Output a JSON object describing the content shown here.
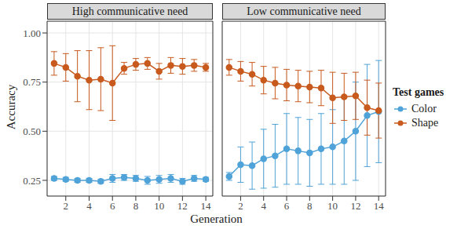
{
  "x_label": "Generation",
  "y_label": "Accuracy",
  "legend_title": "Test games",
  "legend": "right",
  "chart_data": [
    {
      "type": "line",
      "title": "High communicative need",
      "x": [
        1,
        2,
        3,
        4,
        5,
        6,
        7,
        8,
        9,
        10,
        11,
        12,
        13,
        14
      ],
      "xlim": [
        0.4,
        14.6
      ],
      "xticks": [
        2,
        4,
        6,
        8,
        10,
        12,
        14
      ],
      "ylim": [
        0.17,
        1.06
      ],
      "yticks": [
        {
          "value": 0.25,
          "label": "0.25"
        },
        {
          "value": 0.5,
          "label": "0.50"
        },
        {
          "value": 0.75,
          "label": "0.75"
        },
        {
          "value": 1,
          "label": "1.00"
        }
      ],
      "grid": true,
      "tick_labels": true,
      "marker": "circle",
      "series": [
        {
          "name": "Color",
          "color": "#4fa3d8",
          "values": [
            0.26,
            0.255,
            0.25,
            0.25,
            0.245,
            0.26,
            0.265,
            0.26,
            0.25,
            0.255,
            0.26,
            0.245,
            0.26,
            0.255
          ],
          "errors": [
            0.01,
            0.01,
            0.01,
            0.01,
            0.01,
            0.02,
            0.015,
            0.015,
            0.02,
            0.02,
            0.02,
            0.015,
            0.015,
            0.01
          ]
        },
        {
          "name": "Shape",
          "color": "#c85a1e",
          "values": [
            0.845,
            0.825,
            0.78,
            0.76,
            0.765,
            0.745,
            0.82,
            0.84,
            0.845,
            0.805,
            0.835,
            0.83,
            0.835,
            0.825
          ],
          "errors": [
            0.06,
            0.07,
            0.13,
            0.15,
            0.16,
            0.19,
            0.03,
            0.03,
            0.03,
            0.04,
            0.04,
            0.04,
            0.03,
            0.02
          ]
        }
      ]
    },
    {
      "type": "line",
      "title": "Low communicative need",
      "x": [
        1,
        2,
        3,
        4,
        5,
        6,
        7,
        8,
        9,
        10,
        11,
        12,
        13,
        14
      ],
      "xlim": [
        0.4,
        14.6
      ],
      "xticks": [
        2,
        4,
        6,
        8,
        10,
        12,
        14
      ],
      "ylim": [
        0.17,
        1.06
      ],
      "yticks": [
        {
          "value": 0.25,
          "label": "0.25"
        },
        {
          "value": 0.5,
          "label": "0.50"
        },
        {
          "value": 0.75,
          "label": "0.75"
        },
        {
          "value": 1,
          "label": "1.00"
        }
      ],
      "grid": true,
      "tick_labels": "x",
      "marker": "circle",
      "series": [
        {
          "name": "Color",
          "color": "#4fa3d8",
          "values": [
            0.27,
            0.33,
            0.325,
            0.36,
            0.375,
            0.41,
            0.4,
            0.39,
            0.41,
            0.42,
            0.45,
            0.5,
            0.58,
            0.6
          ],
          "errors": [
            0.02,
            0.09,
            0.12,
            0.15,
            0.16,
            0.18,
            0.17,
            0.17,
            0.18,
            0.19,
            0.22,
            0.25,
            0.26,
            0.26
          ]
        },
        {
          "name": "Shape",
          "color": "#c85a1e",
          "values": [
            0.825,
            0.805,
            0.79,
            0.76,
            0.745,
            0.735,
            0.73,
            0.725,
            0.72,
            0.67,
            0.675,
            0.68,
            0.62,
            0.605
          ],
          "errors": [
            0.04,
            0.05,
            0.06,
            0.07,
            0.08,
            0.08,
            0.08,
            0.08,
            0.09,
            0.13,
            0.12,
            0.12,
            0.14,
            0.14
          ]
        }
      ]
    }
  ]
}
